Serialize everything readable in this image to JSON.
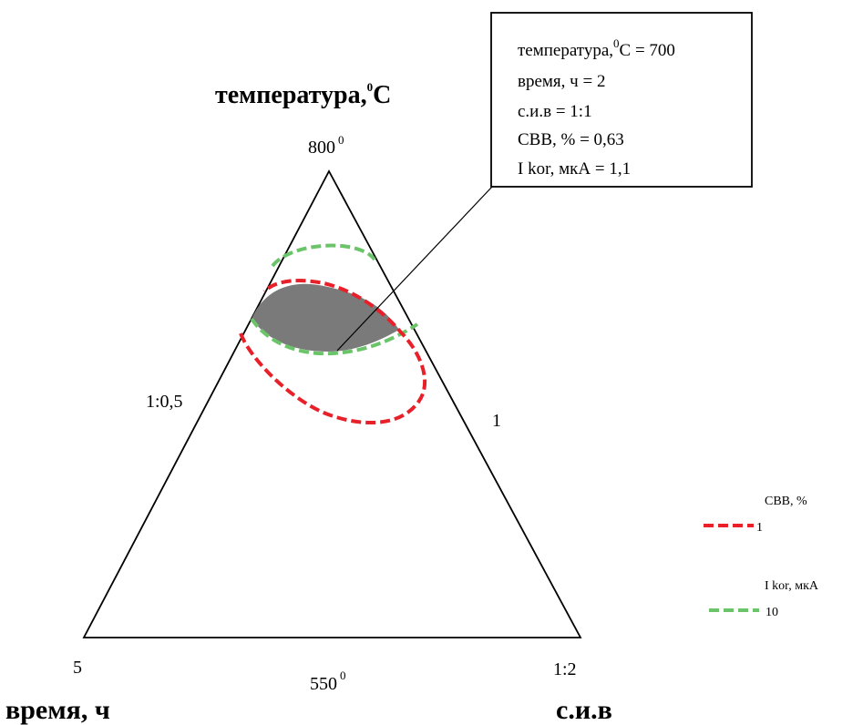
{
  "chart_data": {
    "type": "ternary-contour",
    "axes": {
      "top": {
        "title": "температура,",
        "title_sup": "0",
        "title_unit": "C",
        "max_label": "800",
        "max_sup": "0",
        "min_label": "550",
        "min_sup": "0"
      },
      "left": {
        "title": "время, ч",
        "corner_label": "5",
        "side_label": "1:0,5"
      },
      "right": {
        "title": "с.и.в",
        "corner_label": "1:2",
        "side_label": "1"
      }
    },
    "callout": {
      "lines": [
        {
          "text": "температура,",
          "sup": "0",
          "tail": "С = 700"
        },
        {
          "text": "время, ч = 2"
        },
        {
          "text": "с.и.в = 1:1"
        },
        {
          "text": "СВВ, % = 0,63"
        },
        {
          "text": "I kor, мкА =  1,1"
        }
      ]
    },
    "optimum_point": {
      "temperature_C": 700,
      "time_h": 2,
      "ratio": "1:1",
      "SVV_percent": 0.63,
      "I_kor_uA": 1.1
    },
    "series": [
      {
        "name": "СВВ, %",
        "level_label": "1",
        "color": "#e8202a",
        "style": "dashed"
      },
      {
        "name": "I kor, мкА",
        "level_label": "10",
        "color": "#6cc46a",
        "style": "dashed"
      }
    ],
    "feasible_region_color": "#7a7a7a"
  }
}
